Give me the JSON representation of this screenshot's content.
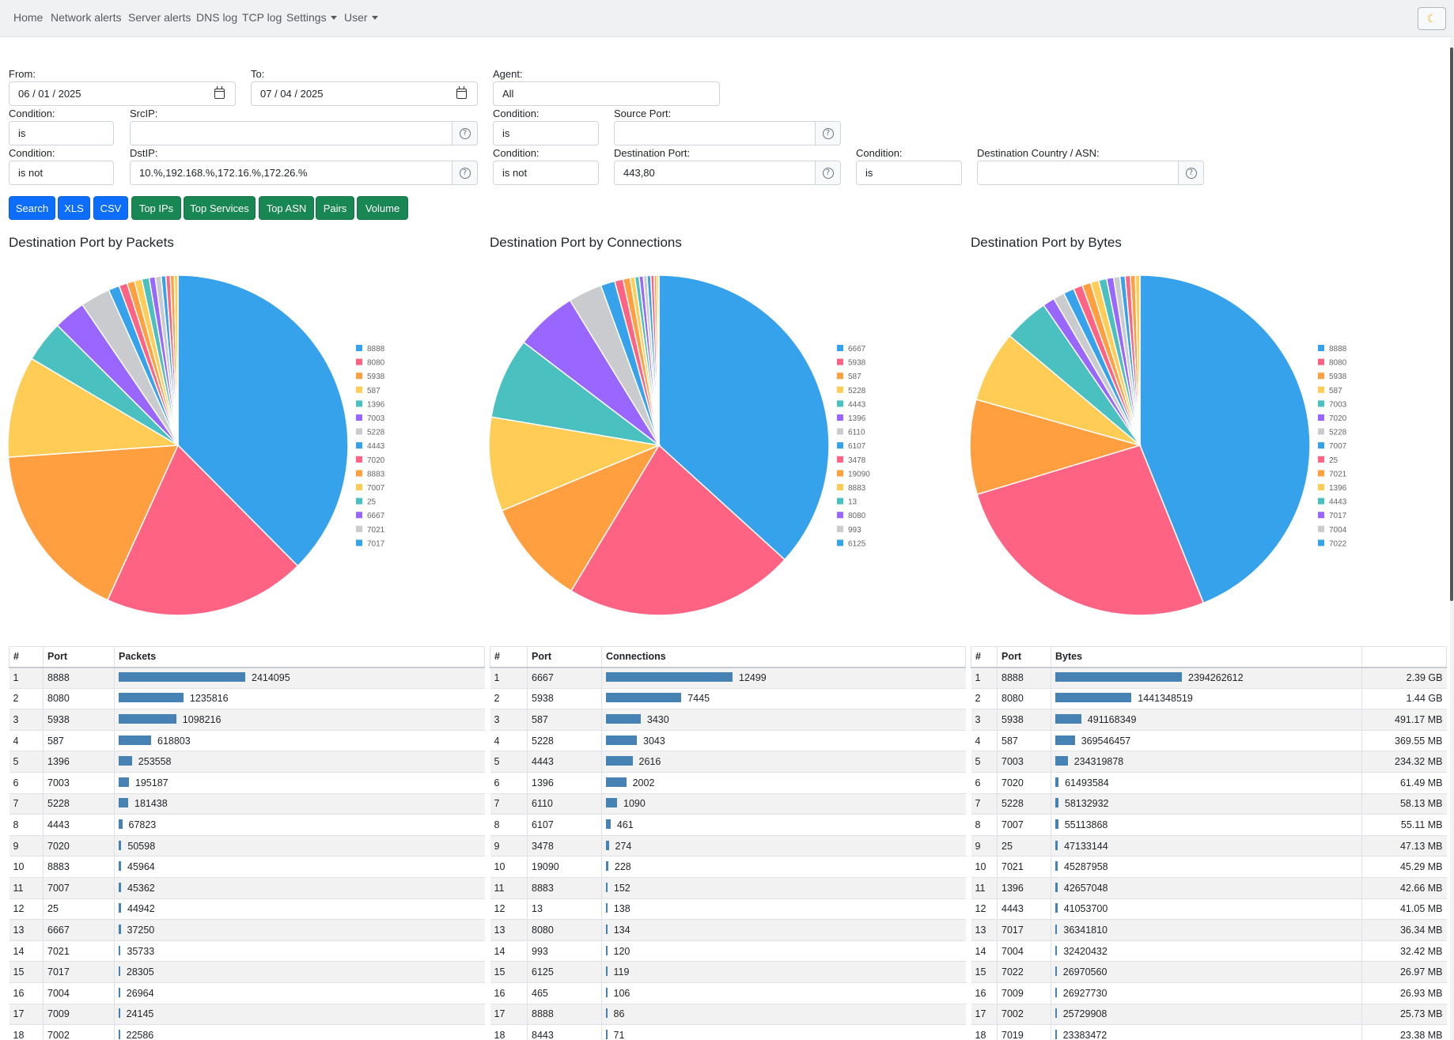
{
  "nav": {
    "items": [
      {
        "label": "Home",
        "dropdown": false
      },
      {
        "label": "Network alerts",
        "dropdown": false
      },
      {
        "label": "Server alerts",
        "dropdown": false
      },
      {
        "label": "DNS log",
        "dropdown": false
      },
      {
        "label": "TCP log",
        "dropdown": false
      },
      {
        "label": "Settings",
        "dropdown": true
      },
      {
        "label": "User",
        "dropdown": true
      }
    ],
    "theme_icon": "☾"
  },
  "form": {
    "from_label": "From:",
    "from_value": "06 / 01 / 2025",
    "to_label": "To:",
    "to_value": "07 / 04 / 2025",
    "agent_label": "Agent:",
    "agent_value": "All",
    "cond_label": "Condition:",
    "srcip_label": "SrcIP:",
    "srcip_cond": "is",
    "srcip_value": "",
    "srcport_label": "Source Port:",
    "srcport_cond": "is",
    "srcport_value": "",
    "dstip_label": "DstIP:",
    "dstip_cond": "is not",
    "dstip_value": "10.%,192.168.%,172.16.%,172.26.%",
    "dstport_label": "Destination Port:",
    "dstport_cond": "is not",
    "dstport_value": "443,80",
    "country_label": "Destination Country / ASN:",
    "country_cond": "is",
    "country_value": "",
    "help_glyph": "?"
  },
  "buttons": {
    "search": "Search",
    "xls": "XLS",
    "csv": "CSV",
    "top_ips": "Top IPs",
    "top_services": "Top Services",
    "top_asn": "Top ASN",
    "pairs": "Pairs",
    "volume": "Volume"
  },
  "colors": [
    "#36a2eb",
    "#ff6384",
    "#ff9f40",
    "#ffcd56",
    "#4bc0c0",
    "#9966ff",
    "#c9cbcf"
  ],
  "chart_data": [
    {
      "type": "pie",
      "title": "Destination Port by Packets",
      "labels": [
        "8888",
        "8080",
        "5938",
        "587",
        "1396",
        "7003",
        "5228",
        "4443",
        "7020",
        "8883",
        "7007",
        "25",
        "6667",
        "7021",
        "7017",
        "7004",
        "7009",
        "7002"
      ],
      "values": [
        2414095,
        1235816,
        1098216,
        618803,
        253558,
        195187,
        181438,
        67823,
        50598,
        45964,
        45362,
        44942,
        37250,
        35733,
        28305,
        26964,
        24145,
        22586
      ],
      "legend_count": 15,
      "legend_position": "right"
    },
    {
      "type": "pie",
      "title": "Destination Port by Connections",
      "labels": [
        "6667",
        "5938",
        "587",
        "5228",
        "4443",
        "1396",
        "6110",
        "6107",
        "3478",
        "19090",
        "8883",
        "13",
        "8080",
        "993",
        "6125",
        "465",
        "8888",
        "8443"
      ],
      "values": [
        12499,
        7445,
        3430,
        3043,
        2616,
        2002,
        1090,
        461,
        274,
        228,
        152,
        138,
        134,
        120,
        119,
        106,
        86,
        71
      ],
      "legend_count": 15,
      "legend_position": "right"
    },
    {
      "type": "pie",
      "title": "Destination Port by Bytes",
      "labels": [
        "8888",
        "8080",
        "5938",
        "587",
        "7003",
        "7020",
        "5228",
        "7007",
        "25",
        "7021",
        "1396",
        "4443",
        "7017",
        "7004",
        "7022",
        "7009",
        "7002",
        "7019"
      ],
      "values": [
        2394262612,
        1441348519,
        491168349,
        369546457,
        234319878,
        61493584,
        58132932,
        55113868,
        47133144,
        45287958,
        42657048,
        41053700,
        36341810,
        32420432,
        26970560,
        26927730,
        25729908,
        23383472
      ],
      "legend_count": 15,
      "legend_position": "right"
    }
  ],
  "tables": {
    "packets": {
      "headers": [
        "#",
        "Port",
        "Packets"
      ],
      "rows": [
        [
          "1",
          "8888",
          "2414095"
        ],
        [
          "2",
          "8080",
          "1235816"
        ],
        [
          "3",
          "5938",
          "1098216"
        ],
        [
          "4",
          "587",
          "618803"
        ],
        [
          "5",
          "1396",
          "253558"
        ],
        [
          "6",
          "7003",
          "195187"
        ],
        [
          "7",
          "5228",
          "181438"
        ],
        [
          "8",
          "4443",
          "67823"
        ],
        [
          "9",
          "7020",
          "50598"
        ],
        [
          "10",
          "8883",
          "45964"
        ],
        [
          "11",
          "7007",
          "45362"
        ],
        [
          "12",
          "25",
          "44942"
        ],
        [
          "13",
          "6667",
          "37250"
        ],
        [
          "14",
          "7021",
          "35733"
        ],
        [
          "15",
          "7017",
          "28305"
        ],
        [
          "16",
          "7004",
          "26964"
        ],
        [
          "17",
          "7009",
          "24145"
        ],
        [
          "18",
          "7002",
          "22586"
        ]
      ]
    },
    "connections": {
      "headers": [
        "#",
        "Port",
        "Connections"
      ],
      "rows": [
        [
          "1",
          "6667",
          "12499"
        ],
        [
          "2",
          "5938",
          "7445"
        ],
        [
          "3",
          "587",
          "3430"
        ],
        [
          "4",
          "5228",
          "3043"
        ],
        [
          "5",
          "4443",
          "2616"
        ],
        [
          "6",
          "1396",
          "2002"
        ],
        [
          "7",
          "6110",
          "1090"
        ],
        [
          "8",
          "6107",
          "461"
        ],
        [
          "9",
          "3478",
          "274"
        ],
        [
          "10",
          "19090",
          "228"
        ],
        [
          "11",
          "8883",
          "152"
        ],
        [
          "12",
          "13",
          "138"
        ],
        [
          "13",
          "8080",
          "134"
        ],
        [
          "14",
          "993",
          "120"
        ],
        [
          "15",
          "6125",
          "119"
        ],
        [
          "16",
          "465",
          "106"
        ],
        [
          "17",
          "8888",
          "86"
        ],
        [
          "18",
          "8443",
          "71"
        ]
      ]
    },
    "bytes": {
      "headers": [
        "#",
        "Port",
        "Bytes",
        ""
      ],
      "rows": [
        [
          "1",
          "8888",
          "2394262612",
          "2.39 GB"
        ],
        [
          "2",
          "8080",
          "1441348519",
          "1.44 GB"
        ],
        [
          "3",
          "5938",
          "491168349",
          "491.17 MB"
        ],
        [
          "4",
          "587",
          "369546457",
          "369.55 MB"
        ],
        [
          "5",
          "7003",
          "234319878",
          "234.32 MB"
        ],
        [
          "6",
          "7020",
          "61493584",
          "61.49 MB"
        ],
        [
          "7",
          "5228",
          "58132932",
          "58.13 MB"
        ],
        [
          "8",
          "7007",
          "55113868",
          "55.11 MB"
        ],
        [
          "9",
          "25",
          "47133144",
          "47.13 MB"
        ],
        [
          "10",
          "7021",
          "45287958",
          "45.29 MB"
        ],
        [
          "11",
          "1396",
          "42657048",
          "42.66 MB"
        ],
        [
          "12",
          "4443",
          "41053700",
          "41.05 MB"
        ],
        [
          "13",
          "7017",
          "36341810",
          "36.34 MB"
        ],
        [
          "14",
          "7004",
          "32420432",
          "32.42 MB"
        ],
        [
          "15",
          "7022",
          "26970560",
          "26.97 MB"
        ],
        [
          "16",
          "7009",
          "26927730",
          "26.93 MB"
        ],
        [
          "17",
          "7002",
          "25729908",
          "25.73 MB"
        ],
        [
          "18",
          "7019",
          "23383472",
          "23.38 MB"
        ]
      ]
    }
  }
}
